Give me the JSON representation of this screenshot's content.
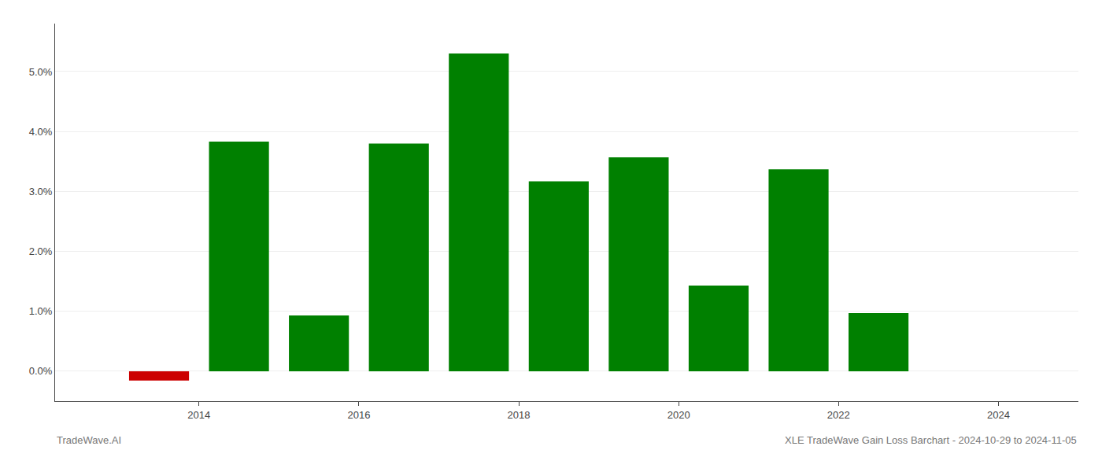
{
  "chart_data": {
    "type": "bar",
    "x": [
      2013,
      2014,
      2015,
      2016,
      2017,
      2018,
      2019,
      2020,
      2021,
      2022,
      2023
    ],
    "values": [
      -0.155,
      3.83,
      0.93,
      3.8,
      5.3,
      3.17,
      3.57,
      1.43,
      3.37,
      0.97,
      0.0
    ],
    "colors": [
      "#cc0000",
      "#008000",
      "#008000",
      "#008000",
      "#008000",
      "#008000",
      "#008000",
      "#008000",
      "#008000",
      "#008000",
      "#008000"
    ],
    "ylim": [
      -0.5,
      5.8
    ],
    "yticks": [
      {
        "value": 0.0,
        "label": "0.0%"
      },
      {
        "value": 1.0,
        "label": "1.0%"
      },
      {
        "value": 2.0,
        "label": "2.0%"
      },
      {
        "value": 3.0,
        "label": "3.0%"
      },
      {
        "value": 4.0,
        "label": "4.0%"
      },
      {
        "value": 5.0,
        "label": "5.0%"
      }
    ],
    "xlim": [
      2012.2,
      2025.0
    ],
    "xticks": [
      2014,
      2016,
      2018,
      2020,
      2022,
      2024
    ],
    "grid": true,
    "annotations": [
      "TradeWave.AI",
      "XLE TradeWave Gain Loss Barchart - 2024-10-29 to 2024-11-05"
    ]
  }
}
